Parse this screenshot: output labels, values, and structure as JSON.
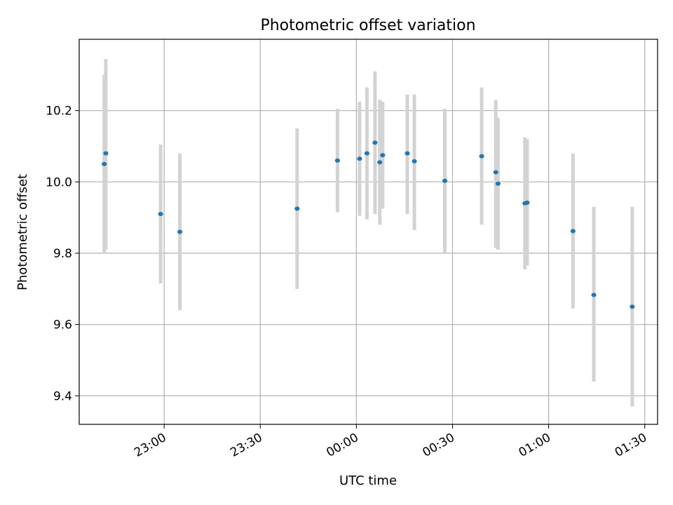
{
  "chart_data": {
    "type": "scatter",
    "title": "Photometric offset variation",
    "xlabel": "UTC time",
    "ylabel": "Photometric offset",
    "x_unit": "minutes",
    "x_tick_values": [
      0,
      30,
      60,
      90,
      120,
      150
    ],
    "xticks": [
      "23:00",
      "23:30",
      "00:00",
      "00:30",
      "01:00",
      "01:30"
    ],
    "xlim": [
      -26.5,
      154
    ],
    "yticks": [
      9.4,
      9.6,
      9.8,
      10.0,
      10.2
    ],
    "ytick_labels": [
      "9.4",
      "9.6",
      "9.8",
      "10.0",
      "10.2"
    ],
    "ylim": [
      9.32,
      10.4
    ],
    "grid": true,
    "marker_color": "#1f77b4",
    "errorbar_color": "#d3d3d3",
    "series": [
      {
        "points": [
          {
            "x": -18.7,
            "y": 10.05,
            "lo": 9.8,
            "hi": 10.3
          },
          {
            "x": -18.2,
            "y": 10.08,
            "lo": 9.81,
            "hi": 10.345
          },
          {
            "x": -1.1,
            "y": 9.91,
            "lo": 9.715,
            "hi": 10.105
          },
          {
            "x": 4.9,
            "y": 9.86,
            "lo": 9.64,
            "hi": 10.08
          },
          {
            "x": 41.5,
            "y": 9.925,
            "lo": 9.7,
            "hi": 10.15
          },
          {
            "x": 54.1,
            "y": 10.06,
            "lo": 9.915,
            "hi": 10.205
          },
          {
            "x": 61.0,
            "y": 10.065,
            "lo": 9.905,
            "hi": 10.225
          },
          {
            "x": 63.3,
            "y": 10.08,
            "lo": 9.895,
            "hi": 10.265
          },
          {
            "x": 65.8,
            "y": 10.11,
            "lo": 9.91,
            "hi": 10.31
          },
          {
            "x": 67.3,
            "y": 10.055,
            "lo": 9.88,
            "hi": 10.23
          },
          {
            "x": 68.2,
            "y": 10.075,
            "lo": 9.925,
            "hi": 10.225
          },
          {
            "x": 75.9,
            "y": 10.08,
            "lo": 9.91,
            "hi": 10.245
          },
          {
            "x": 78.1,
            "y": 10.058,
            "lo": 9.865,
            "hi": 10.245
          },
          {
            "x": 87.6,
            "y": 10.003,
            "lo": 9.8,
            "hi": 10.205
          },
          {
            "x": 99.1,
            "y": 10.072,
            "lo": 9.88,
            "hi": 10.265
          },
          {
            "x": 103.5,
            "y": 10.027,
            "lo": 9.815,
            "hi": 10.23
          },
          {
            "x": 104.2,
            "y": 9.995,
            "lo": 9.81,
            "hi": 10.18
          },
          {
            "x": 112.6,
            "y": 9.94,
            "lo": 9.755,
            "hi": 10.125
          },
          {
            "x": 113.3,
            "y": 9.942,
            "lo": 9.765,
            "hi": 10.12
          },
          {
            "x": 127.6,
            "y": 9.862,
            "lo": 9.645,
            "hi": 10.08
          },
          {
            "x": 134.1,
            "y": 9.683,
            "lo": 9.44,
            "hi": 9.93
          },
          {
            "x": 146.1,
            "y": 9.65,
            "lo": 9.37,
            "hi": 9.93
          }
        ]
      }
    ]
  }
}
